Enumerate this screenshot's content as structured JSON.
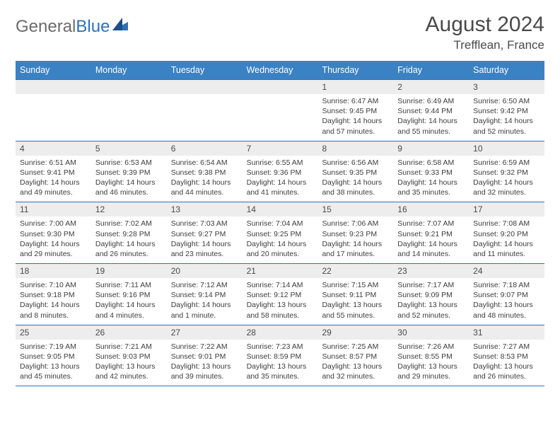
{
  "brand": {
    "name1": "General",
    "name2": "Blue"
  },
  "title": "August 2024",
  "location": "Trefflean, France",
  "header_color": "#3b82c4",
  "border_color": "#2d72b8",
  "daynum_bg": "#ededed",
  "text_color": "#4a4a4a",
  "day_names": [
    "Sunday",
    "Monday",
    "Tuesday",
    "Wednesday",
    "Thursday",
    "Friday",
    "Saturday"
  ],
  "weeks": [
    [
      {
        "empty": true
      },
      {
        "empty": true
      },
      {
        "empty": true
      },
      {
        "empty": true
      },
      {
        "n": "1",
        "sr": "6:47 AM",
        "ss": "9:45 PM",
        "dl": "14 hours and 57 minutes."
      },
      {
        "n": "2",
        "sr": "6:49 AM",
        "ss": "9:44 PM",
        "dl": "14 hours and 55 minutes."
      },
      {
        "n": "3",
        "sr": "6:50 AM",
        "ss": "9:42 PM",
        "dl": "14 hours and 52 minutes."
      }
    ],
    [
      {
        "n": "4",
        "sr": "6:51 AM",
        "ss": "9:41 PM",
        "dl": "14 hours and 49 minutes."
      },
      {
        "n": "5",
        "sr": "6:53 AM",
        "ss": "9:39 PM",
        "dl": "14 hours and 46 minutes."
      },
      {
        "n": "6",
        "sr": "6:54 AM",
        "ss": "9:38 PM",
        "dl": "14 hours and 44 minutes."
      },
      {
        "n": "7",
        "sr": "6:55 AM",
        "ss": "9:36 PM",
        "dl": "14 hours and 41 minutes."
      },
      {
        "n": "8",
        "sr": "6:56 AM",
        "ss": "9:35 PM",
        "dl": "14 hours and 38 minutes."
      },
      {
        "n": "9",
        "sr": "6:58 AM",
        "ss": "9:33 PM",
        "dl": "14 hours and 35 minutes."
      },
      {
        "n": "10",
        "sr": "6:59 AM",
        "ss": "9:32 PM",
        "dl": "14 hours and 32 minutes."
      }
    ],
    [
      {
        "n": "11",
        "sr": "7:00 AM",
        "ss": "9:30 PM",
        "dl": "14 hours and 29 minutes."
      },
      {
        "n": "12",
        "sr": "7:02 AM",
        "ss": "9:28 PM",
        "dl": "14 hours and 26 minutes."
      },
      {
        "n": "13",
        "sr": "7:03 AM",
        "ss": "9:27 PM",
        "dl": "14 hours and 23 minutes."
      },
      {
        "n": "14",
        "sr": "7:04 AM",
        "ss": "9:25 PM",
        "dl": "14 hours and 20 minutes."
      },
      {
        "n": "15",
        "sr": "7:06 AM",
        "ss": "9:23 PM",
        "dl": "14 hours and 17 minutes."
      },
      {
        "n": "16",
        "sr": "7:07 AM",
        "ss": "9:21 PM",
        "dl": "14 hours and 14 minutes."
      },
      {
        "n": "17",
        "sr": "7:08 AM",
        "ss": "9:20 PM",
        "dl": "14 hours and 11 minutes."
      }
    ],
    [
      {
        "n": "18",
        "sr": "7:10 AM",
        "ss": "9:18 PM",
        "dl": "14 hours and 8 minutes."
      },
      {
        "n": "19",
        "sr": "7:11 AM",
        "ss": "9:16 PM",
        "dl": "14 hours and 4 minutes."
      },
      {
        "n": "20",
        "sr": "7:12 AM",
        "ss": "9:14 PM",
        "dl": "14 hours and 1 minute."
      },
      {
        "n": "21",
        "sr": "7:14 AM",
        "ss": "9:12 PM",
        "dl": "13 hours and 58 minutes."
      },
      {
        "n": "22",
        "sr": "7:15 AM",
        "ss": "9:11 PM",
        "dl": "13 hours and 55 minutes."
      },
      {
        "n": "23",
        "sr": "7:17 AM",
        "ss": "9:09 PM",
        "dl": "13 hours and 52 minutes."
      },
      {
        "n": "24",
        "sr": "7:18 AM",
        "ss": "9:07 PM",
        "dl": "13 hours and 48 minutes."
      }
    ],
    [
      {
        "n": "25",
        "sr": "7:19 AM",
        "ss": "9:05 PM",
        "dl": "13 hours and 45 minutes."
      },
      {
        "n": "26",
        "sr": "7:21 AM",
        "ss": "9:03 PM",
        "dl": "13 hours and 42 minutes."
      },
      {
        "n": "27",
        "sr": "7:22 AM",
        "ss": "9:01 PM",
        "dl": "13 hours and 39 minutes."
      },
      {
        "n": "28",
        "sr": "7:23 AM",
        "ss": "8:59 PM",
        "dl": "13 hours and 35 minutes."
      },
      {
        "n": "29",
        "sr": "7:25 AM",
        "ss": "8:57 PM",
        "dl": "13 hours and 32 minutes."
      },
      {
        "n": "30",
        "sr": "7:26 AM",
        "ss": "8:55 PM",
        "dl": "13 hours and 29 minutes."
      },
      {
        "n": "31",
        "sr": "7:27 AM",
        "ss": "8:53 PM",
        "dl": "13 hours and 26 minutes."
      }
    ]
  ],
  "labels": {
    "sunrise": "Sunrise: ",
    "sunset": "Sunset: ",
    "daylight": "Daylight: "
  }
}
